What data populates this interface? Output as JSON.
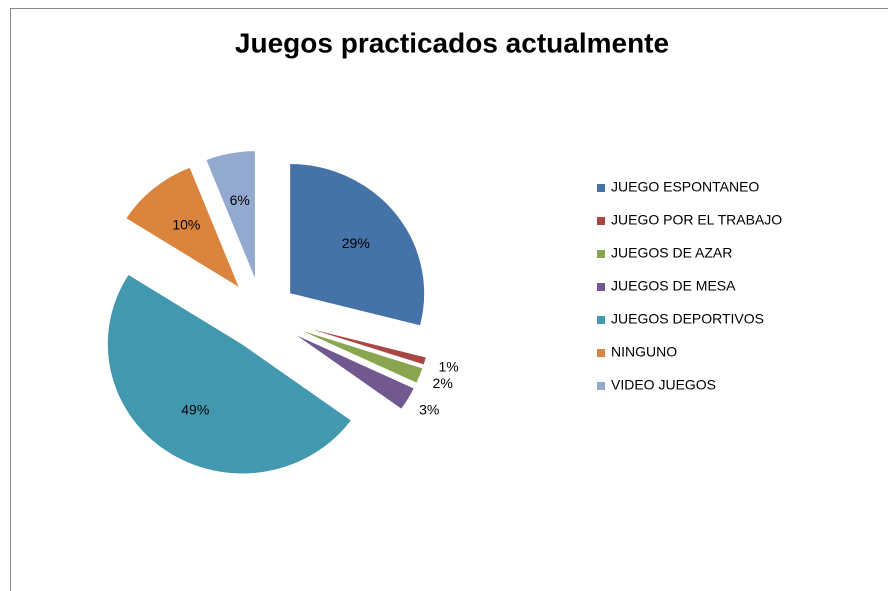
{
  "chart_data": {
    "type": "pie",
    "title": "Juegos practicados actualmente",
    "categories": [
      "JUEGO ESPONTANEO",
      "JUEGO POR EL TRABAJO",
      "JUEGOS DE AZAR",
      "JUEGOS DE MESA",
      "JUEGOS DEPORTIVOS",
      "NINGUNO",
      "VIDEO JUEGOS"
    ],
    "values": [
      29,
      1,
      2,
      3,
      49,
      10,
      6
    ],
    "value_labels": [
      "29%",
      "1%",
      "2%",
      "3%",
      "49%",
      "10%",
      "6%"
    ],
    "colors": [
      "#4572a7",
      "#aa4643",
      "#89a54e",
      "#71588f",
      "#4198af",
      "#db843d",
      "#93a9cf"
    ],
    "legend": "right"
  }
}
